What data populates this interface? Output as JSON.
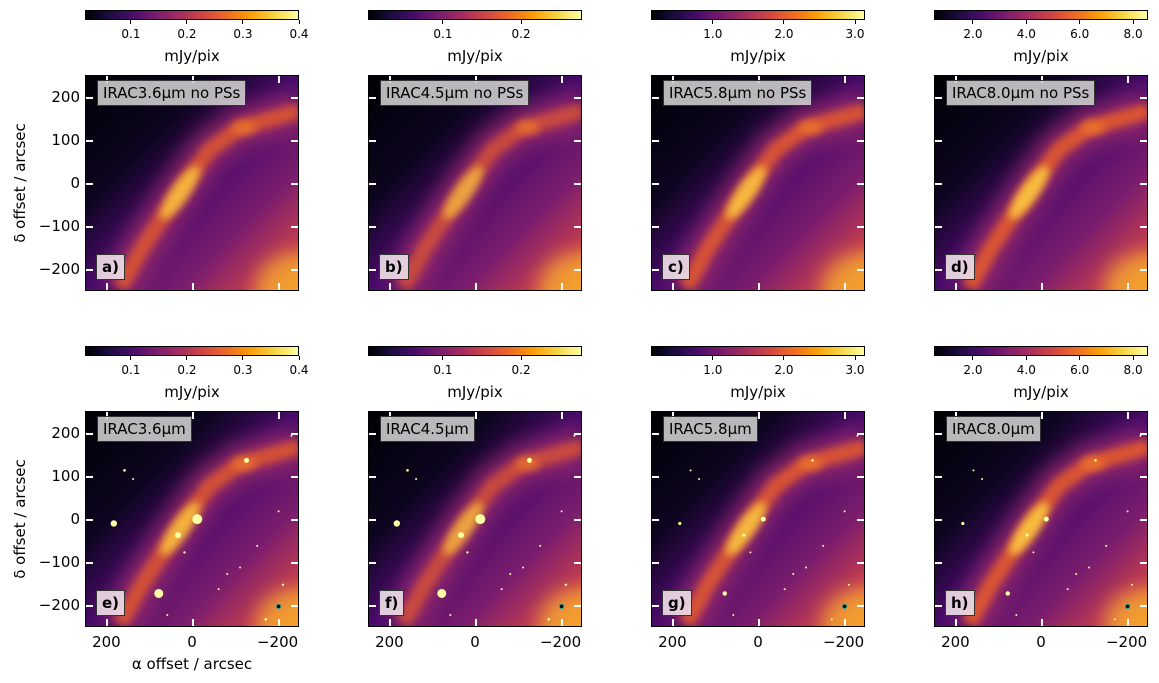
{
  "chart_data": [
    {
      "type": "heatmap",
      "panel": "a)",
      "title": "IRAC3.6μm no PSs",
      "colorbar": {
        "label": "mJy/pix",
        "ticks": [
          "0.1",
          "0.2",
          "0.3",
          "0.4"
        ],
        "tick_values": [
          0.1,
          0.2,
          0.3,
          0.4
        ],
        "range": [
          0.018,
          0.4
        ],
        "colormap": "inferno"
      },
      "xlim": [
        250,
        -250
      ],
      "ylim": [
        -250,
        250
      ],
      "xticks": [
        "200",
        "0",
        "−200"
      ],
      "xtick_values": [
        200,
        0,
        -200
      ],
      "yticks": [
        "200",
        "100",
        "0",
        "−100",
        "−200"
      ],
      "ytick_values": [
        200,
        100,
        0,
        -100,
        -200
      ],
      "ylabel": "δ  offset / arcsec",
      "xlabel": "",
      "show_yticklabels": true,
      "show_xticklabels": false,
      "point_sources": false
    },
    {
      "type": "heatmap",
      "panel": "b)",
      "title": "IRAC4.5μm no PSs",
      "colorbar": {
        "label": "mJy/pix",
        "ticks": [
          "0.1",
          "0.2"
        ],
        "tick_values": [
          0.1,
          0.2
        ],
        "range": [
          0.004,
          0.278
        ],
        "colormap": "inferno"
      },
      "xlim": [
        250,
        -250
      ],
      "ylim": [
        -250,
        250
      ],
      "xtick_values": [
        200,
        0,
        -200
      ],
      "ytick_values": [
        200,
        100,
        0,
        -100,
        -200
      ],
      "show_yticklabels": false,
      "show_xticklabels": false,
      "point_sources": false
    },
    {
      "type": "heatmap",
      "panel": "c)",
      "title": "IRAC5.8μm no PSs",
      "colorbar": {
        "label": "mJy/pix",
        "ticks": [
          "1.0",
          "2.0",
          "3.0"
        ],
        "tick_values": [
          1.0,
          2.0,
          3.0
        ],
        "range": [
          0.13,
          3.14
        ],
        "colormap": "inferno"
      },
      "xlim": [
        250,
        -250
      ],
      "ylim": [
        -250,
        250
      ],
      "xtick_values": [
        200,
        0,
        -200
      ],
      "ytick_values": [
        200,
        100,
        0,
        -100,
        -200
      ],
      "show_yticklabels": false,
      "show_xticklabels": false,
      "point_sources": false
    },
    {
      "type": "heatmap",
      "panel": "d)",
      "title": "IRAC8.0μm no PSs",
      "colorbar": {
        "label": "mJy/pix",
        "ticks": [
          "2.0",
          "4.0",
          "6.0",
          "8.0"
        ],
        "tick_values": [
          2.0,
          4.0,
          6.0,
          8.0
        ],
        "range": [
          0.54,
          8.56
        ],
        "colormap": "inferno"
      },
      "xlim": [
        250,
        -250
      ],
      "ylim": [
        -250,
        250
      ],
      "xtick_values": [
        200,
        0,
        -200
      ],
      "ytick_values": [
        200,
        100,
        0,
        -100,
        -200
      ],
      "show_yticklabels": false,
      "show_xticklabels": false,
      "point_sources": false
    },
    {
      "type": "heatmap",
      "panel": "e)",
      "title": "IRAC3.6μm",
      "colorbar": {
        "label": "mJy/pix",
        "ticks": [
          "0.1",
          "0.2",
          "0.3",
          "0.4"
        ],
        "tick_values": [
          0.1,
          0.2,
          0.3,
          0.4
        ],
        "range": [
          0.018,
          0.4
        ],
        "colormap": "inferno"
      },
      "xlim": [
        250,
        -250
      ],
      "ylim": [
        -250,
        250
      ],
      "xticks": [
        "200",
        "0",
        "−200"
      ],
      "xtick_values": [
        200,
        0,
        -200
      ],
      "yticks": [
        "200",
        "100",
        "0",
        "−100",
        "−200"
      ],
      "ytick_values": [
        200,
        100,
        0,
        -100,
        -200
      ],
      "ylabel": "δ  offset / arcsec",
      "xlabel": "α offset / arcsec",
      "show_yticklabels": true,
      "show_xticklabels": true,
      "point_sources": true
    },
    {
      "type": "heatmap",
      "panel": "f)",
      "title": "IRAC4.5μm",
      "colorbar": {
        "label": "mJy/pix",
        "ticks": [
          "0.1",
          "0.2"
        ],
        "tick_values": [
          0.1,
          0.2
        ],
        "range": [
          0.004,
          0.278
        ],
        "colormap": "inferno"
      },
      "xlim": [
        250,
        -250
      ],
      "ylim": [
        -250,
        250
      ],
      "xticks": [
        "200",
        "0",
        "−200"
      ],
      "xtick_values": [
        200,
        0,
        -200
      ],
      "ytick_values": [
        200,
        100,
        0,
        -100,
        -200
      ],
      "show_yticklabels": false,
      "show_xticklabels": true,
      "point_sources": true
    },
    {
      "type": "heatmap",
      "panel": "g)",
      "title": "IRAC5.8μm",
      "colorbar": {
        "label": "mJy/pix",
        "ticks": [
          "1.0",
          "2.0",
          "3.0"
        ],
        "tick_values": [
          1.0,
          2.0,
          3.0
        ],
        "range": [
          0.13,
          3.14
        ],
        "colormap": "inferno"
      },
      "xlim": [
        250,
        -250
      ],
      "ylim": [
        -250,
        250
      ],
      "xticks": [
        "200",
        "0",
        "−200"
      ],
      "xtick_values": [
        200,
        0,
        -200
      ],
      "ytick_values": [
        200,
        100,
        0,
        -100,
        -200
      ],
      "show_yticklabels": false,
      "show_xticklabels": true,
      "point_sources": true
    },
    {
      "type": "heatmap",
      "panel": "h)",
      "title": "IRAC8.0μm",
      "colorbar": {
        "label": "mJy/pix",
        "ticks": [
          "2.0",
          "4.0",
          "6.0",
          "8.0"
        ],
        "tick_values": [
          2.0,
          4.0,
          6.0,
          8.0
        ],
        "range": [
          0.54,
          8.56
        ],
        "colormap": "inferno"
      },
      "xlim": [
        250,
        -250
      ],
      "ylim": [
        -250,
        250
      ],
      "xticks": [
        "200",
        "0",
        "−200"
      ],
      "xtick_values": [
        200,
        0,
        -200
      ],
      "ytick_values": [
        200,
        100,
        0,
        -100,
        -200
      ],
      "show_yticklabels": false,
      "show_xticklabels": true,
      "point_sources": true
    }
  ]
}
